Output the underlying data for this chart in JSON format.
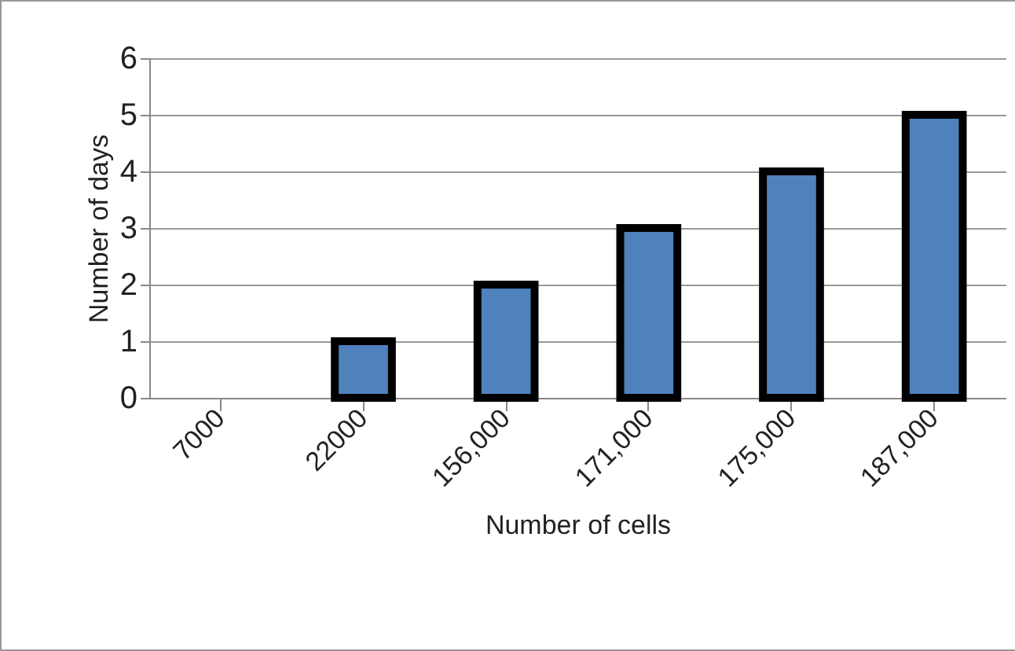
{
  "chart_data": {
    "type": "bar",
    "xlabel": "Number of cells",
    "ylabel": "Number of days",
    "categories": [
      "7000",
      "22000",
      "156,000",
      "171,000",
      "175,000",
      "187,000"
    ],
    "values": [
      0,
      1,
      2,
      3,
      4,
      5
    ],
    "color": "#4f81bd",
    "ylim": [
      0,
      6
    ],
    "yticks": [
      0,
      1,
      2,
      3,
      4,
      5,
      6
    ],
    "grid": "y"
  }
}
